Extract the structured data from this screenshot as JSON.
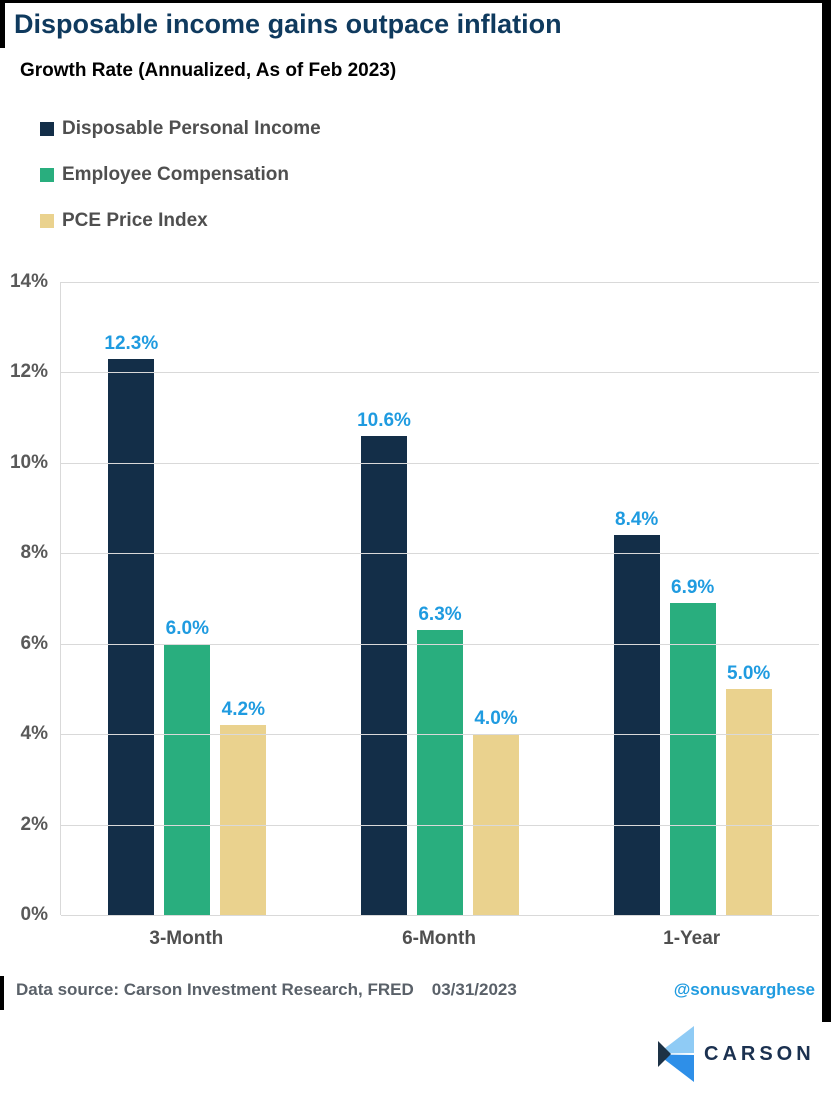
{
  "header": {
    "title": "Disposable income gains outpace inflation",
    "subtitle": "Growth Rate (Annualized, As of Feb 2023)"
  },
  "chart_data": {
    "type": "bar",
    "title": "Growth Rate (Annualized, As of Feb 2023)",
    "categories": [
      "3-Month",
      "6-Month",
      "1-Year"
    ],
    "series": [
      {
        "name": "Disposable Personal Income",
        "color": "#132E48",
        "values": [
          12.3,
          10.6,
          8.4
        ]
      },
      {
        "name": "Employee Compensation",
        "color": "#29AE7E",
        "values": [
          6.0,
          6.3,
          6.9
        ]
      },
      {
        "name": "PCE Price Index",
        "color": "#EAD28E",
        "values": [
          4.2,
          4.0,
          5.0
        ]
      }
    ],
    "value_label_suffix": "%",
    "value_label_color": "#1F9BE0",
    "xlabel": "",
    "ylabel": "",
    "ylim": [
      0,
      14
    ],
    "y_ticks": [
      "14%",
      "12%",
      "10%",
      "8%",
      "6%",
      "4%",
      "2%",
      "0%"
    ],
    "grid": true,
    "gridline_color": "#D9D9D9",
    "legend_position": "top-left"
  },
  "footer": {
    "source": "Data source: Carson Investment Research, FRED",
    "date": "03/31/2023",
    "handle": "@sonusvarghese"
  },
  "branding": {
    "logo_text": "CARSON",
    "logo_colors": {
      "light_blue": "#8FCBF5",
      "blue": "#2E8FE8",
      "dark_navy": "#1D3246"
    }
  }
}
